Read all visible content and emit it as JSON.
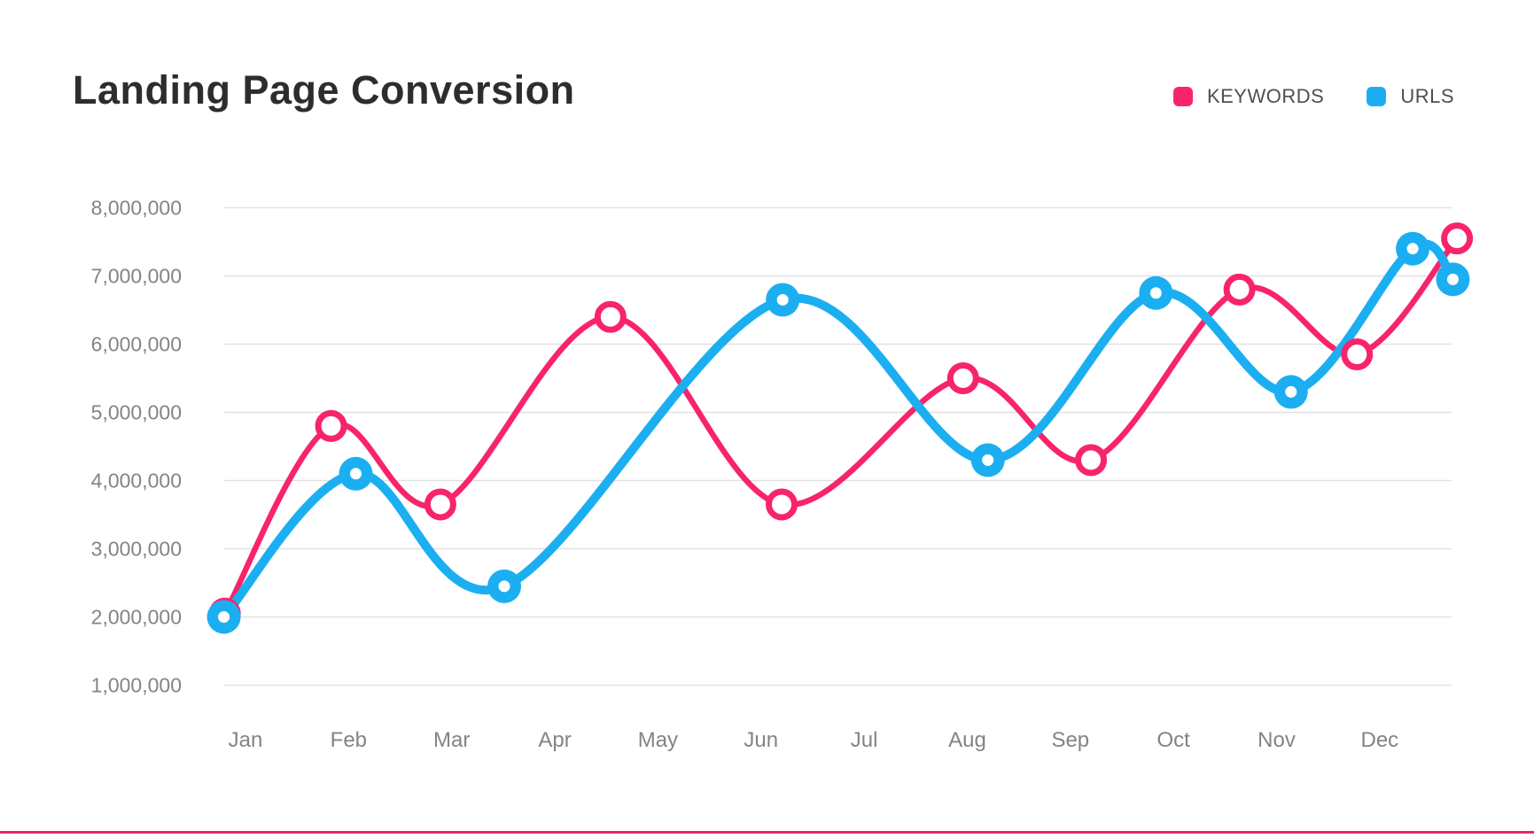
{
  "header": {
    "title": "Landing Page Conversion"
  },
  "legend": {
    "position": "top-right",
    "items": [
      {
        "label": "KEYWORDS",
        "color": "#F8246B"
      },
      {
        "label": "URLS",
        "color": "#1BAFF1"
      }
    ]
  },
  "chart_data": {
    "type": "line",
    "title": "Landing Page Conversion",
    "x_tick_labels": [
      "Jan",
      "Feb",
      "Mar",
      "Apr",
      "May",
      "Jun",
      "Jul",
      "Aug",
      "Sep",
      "Oct",
      "Nov",
      "Dec"
    ],
    "y_tick_labels": [
      "1,000,000",
      "2,000,000",
      "3,000,000",
      "4,000,000",
      "5,000,000",
      "6,000,000",
      "7,000,000",
      "8,000,000"
    ],
    "y_axis_range": [
      1000000,
      8000000
    ],
    "grid": "horizontal-only",
    "legend_position": "top-right",
    "x_unit": "month index (0 = Jan, 11 = Dec, fractional = marker sits between month ticks)",
    "series": [
      {
        "name": "KEYWORDS",
        "color": "#F8246B",
        "line_width": 6.5,
        "marker": "open-circle",
        "points": [
          {
            "x": -0.2,
            "value": 2050000
          },
          {
            "x": 0.83,
            "value": 4800000
          },
          {
            "x": 1.89,
            "value": 3650000
          },
          {
            "x": 3.54,
            "value": 6400000
          },
          {
            "x": 5.2,
            "value": 3650000
          },
          {
            "x": 6.96,
            "value": 5500000
          },
          {
            "x": 8.2,
            "value": 4300000
          },
          {
            "x": 9.64,
            "value": 6800000
          },
          {
            "x": 10.78,
            "value": 5850000
          },
          {
            "x": 11.75,
            "value": 7550000
          }
        ]
      },
      {
        "name": "URLS",
        "color": "#1BAFF1",
        "line_width": 10,
        "marker": "filled-circle-white-dot",
        "points": [
          {
            "x": -0.21,
            "value": 2000000
          },
          {
            "x": 1.07,
            "value": 4100000
          },
          {
            "x": 2.51,
            "value": 2450000
          },
          {
            "x": 5.21,
            "value": 6650000
          },
          {
            "x": 7.2,
            "value": 4300000
          },
          {
            "x": 8.83,
            "value": 6750000
          },
          {
            "x": 10.14,
            "value": 5300000
          },
          {
            "x": 11.32,
            "value": 7400000
          },
          {
            "x": 11.71,
            "value": 6950000
          }
        ]
      }
    ]
  }
}
